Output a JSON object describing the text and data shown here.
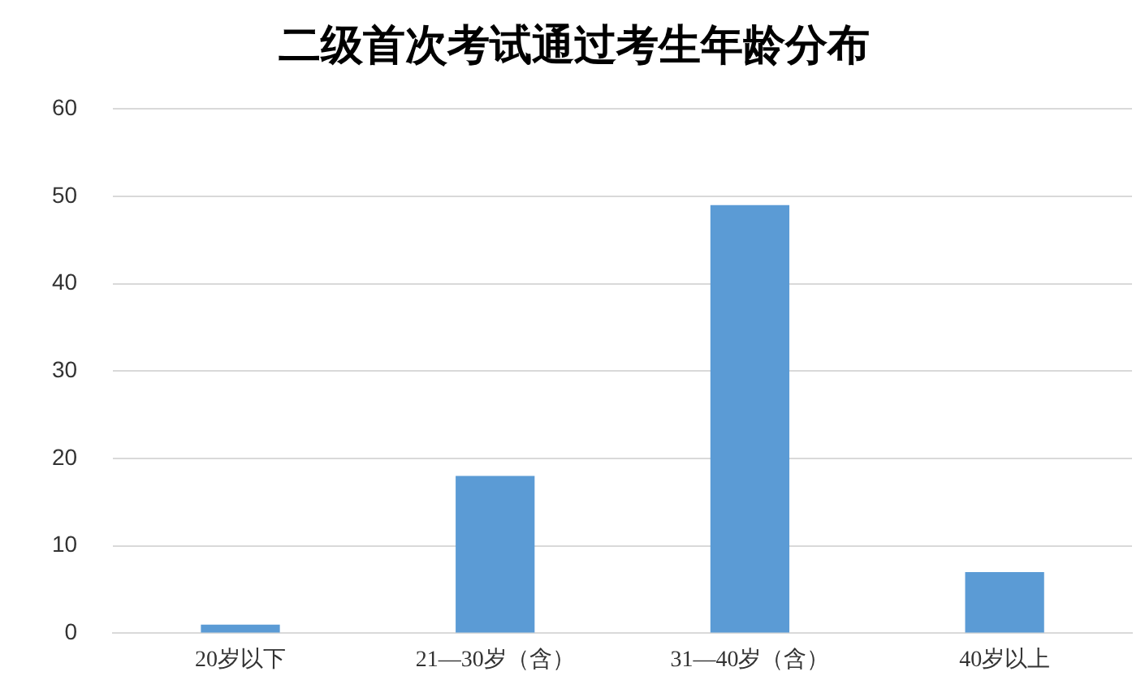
{
  "chart_data": {
    "type": "bar",
    "title": "二级首次考试通过考生年龄分布",
    "categories": [
      "20岁以下",
      "21—30岁（含）",
      "31—40岁（含）",
      "40岁以上"
    ],
    "values": [
      1,
      18,
      49,
      7
    ],
    "color": "#5b9bd5",
    "ylim": [
      0,
      60
    ],
    "yticks": [
      0,
      10,
      20,
      30,
      40,
      50,
      60
    ],
    "grid": "y"
  }
}
